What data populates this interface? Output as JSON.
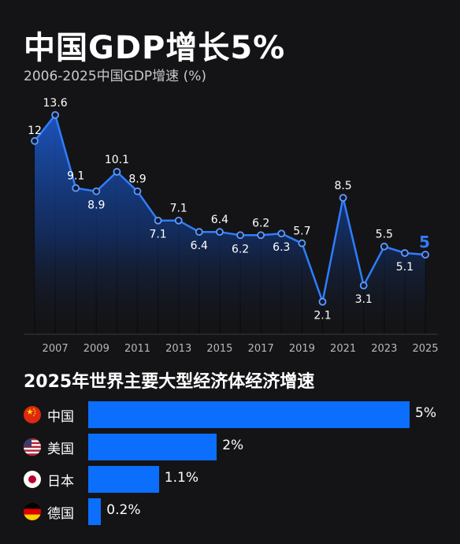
{
  "header": {
    "title": "中国GDP增长5%",
    "subtitle": "2006-2025中国GDP增速 (%)"
  },
  "colors": {
    "background": "#141416",
    "line": "#2f7dff",
    "bar": "#0b6efc"
  },
  "chart_data": [
    {
      "type": "area",
      "title": "中国GDP增长5%",
      "subtitle": "2006-2025中国GDP增速 (%)",
      "x": [
        2006,
        2007,
        2008,
        2009,
        2010,
        2011,
        2012,
        2013,
        2014,
        2015,
        2016,
        2017,
        2018,
        2019,
        2020,
        2021,
        2022,
        2023,
        2024,
        2025
      ],
      "values": [
        12,
        13.6,
        9.1,
        8.9,
        10.1,
        8.9,
        7.1,
        7.1,
        6.4,
        6.4,
        6.2,
        6.2,
        6.3,
        5.7,
        2.1,
        8.5,
        3.1,
        5.5,
        5.1,
        5
      ],
      "data_labels": [
        "12",
        "13.6",
        "9.1",
        "8.9",
        "10.1",
        "8.9",
        "7.1",
        "7.1",
        "6.4",
        "6.4",
        "6.2",
        "6.2",
        "6.3",
        "5.7",
        "2.1",
        "8.5",
        "3.1",
        "5.5",
        "5.1",
        "5"
      ],
      "x_tick_labels": [
        "2007",
        "2009",
        "2011",
        "2013",
        "2015",
        "2017",
        "2019",
        "2021",
        "2023",
        "2025"
      ],
      "xlim": [
        2005.6,
        2025.4
      ],
      "ylim": [
        0,
        14.5
      ],
      "grid": false,
      "legend": "none"
    },
    {
      "type": "bar",
      "orientation": "horizontal",
      "title": "2025年世界主要大型经济体经济增速",
      "categories": [
        "中国",
        "美国",
        "日本",
        "德国"
      ],
      "values": [
        5,
        2,
        1.1,
        0.2
      ],
      "value_labels": [
        "5%",
        "2%",
        "1.1%",
        "0.2%"
      ],
      "flags": [
        "china-flag-icon",
        "usa-flag-icon",
        "japan-flag-icon",
        "germany-flag-icon"
      ],
      "xlim": [
        0,
        5
      ],
      "grid": false,
      "legend": "none"
    }
  ]
}
